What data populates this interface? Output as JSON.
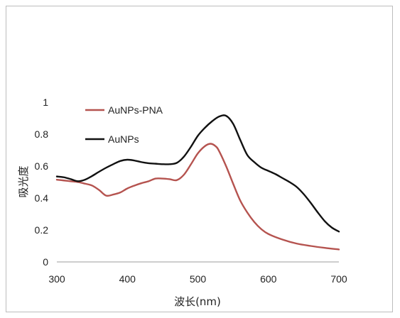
{
  "chart_data": {
    "type": "line",
    "xlabel": "波长(nm)",
    "ylabel": "吸光度",
    "xlim": [
      300,
      700
    ],
    "ylim": [
      0,
      1
    ],
    "xticks": [
      300,
      400,
      500,
      600,
      700
    ],
    "yticks": [
      0,
      0.2,
      0.4,
      0.6,
      0.8,
      1
    ],
    "xtick_labels": [
      "300",
      "400",
      "500",
      "600",
      "700"
    ],
    "ytick_labels": [
      "0",
      "0.2",
      "0.4",
      "0.6",
      "0.8",
      "1"
    ],
    "grid": false,
    "legend_position": "top-left",
    "series": [
      {
        "name": "AuNPs-PNA",
        "color": "#b5534f",
        "points": [
          [
            300,
            0.515
          ],
          [
            310,
            0.51
          ],
          [
            320,
            0.505
          ],
          [
            330,
            0.5
          ],
          [
            340,
            0.49
          ],
          [
            350,
            0.478
          ],
          [
            360,
            0.45
          ],
          [
            370,
            0.415
          ],
          [
            380,
            0.422
          ],
          [
            390,
            0.435
          ],
          [
            400,
            0.46
          ],
          [
            410,
            0.478
          ],
          [
            420,
            0.493
          ],
          [
            430,
            0.505
          ],
          [
            440,
            0.522
          ],
          [
            450,
            0.522
          ],
          [
            460,
            0.518
          ],
          [
            470,
            0.512
          ],
          [
            480,
            0.545
          ],
          [
            490,
            0.61
          ],
          [
            500,
            0.68
          ],
          [
            510,
            0.725
          ],
          [
            518,
            0.74
          ],
          [
            525,
            0.725
          ],
          [
            530,
            0.695
          ],
          [
            540,
            0.6
          ],
          [
            550,
            0.49
          ],
          [
            560,
            0.385
          ],
          [
            570,
            0.31
          ],
          [
            580,
            0.25
          ],
          [
            590,
            0.205
          ],
          [
            600,
            0.175
          ],
          [
            620,
            0.14
          ],
          [
            640,
            0.115
          ],
          [
            660,
            0.1
          ],
          [
            680,
            0.088
          ],
          [
            700,
            0.078
          ]
        ]
      },
      {
        "name": "AuNPs",
        "color": "#111111",
        "points": [
          [
            300,
            0.535
          ],
          [
            310,
            0.53
          ],
          [
            320,
            0.518
          ],
          [
            330,
            0.505
          ],
          [
            340,
            0.515
          ],
          [
            350,
            0.538
          ],
          [
            360,
            0.565
          ],
          [
            370,
            0.59
          ],
          [
            380,
            0.612
          ],
          [
            390,
            0.632
          ],
          [
            400,
            0.64
          ],
          [
            410,
            0.635
          ],
          [
            420,
            0.625
          ],
          [
            430,
            0.618
          ],
          [
            440,
            0.615
          ],
          [
            450,
            0.612
          ],
          [
            460,
            0.612
          ],
          [
            470,
            0.62
          ],
          [
            480,
            0.658
          ],
          [
            490,
            0.72
          ],
          [
            500,
            0.79
          ],
          [
            510,
            0.84
          ],
          [
            520,
            0.88
          ],
          [
            530,
            0.91
          ],
          [
            540,
            0.915
          ],
          [
            550,
            0.865
          ],
          [
            560,
            0.765
          ],
          [
            570,
            0.67
          ],
          [
            580,
            0.625
          ],
          [
            590,
            0.59
          ],
          [
            600,
            0.57
          ],
          [
            610,
            0.55
          ],
          [
            620,
            0.525
          ],
          [
            630,
            0.5
          ],
          [
            640,
            0.47
          ],
          [
            650,
            0.425
          ],
          [
            660,
            0.37
          ],
          [
            670,
            0.31
          ],
          [
            680,
            0.255
          ],
          [
            690,
            0.215
          ],
          [
            700,
            0.19
          ]
        ]
      }
    ]
  }
}
